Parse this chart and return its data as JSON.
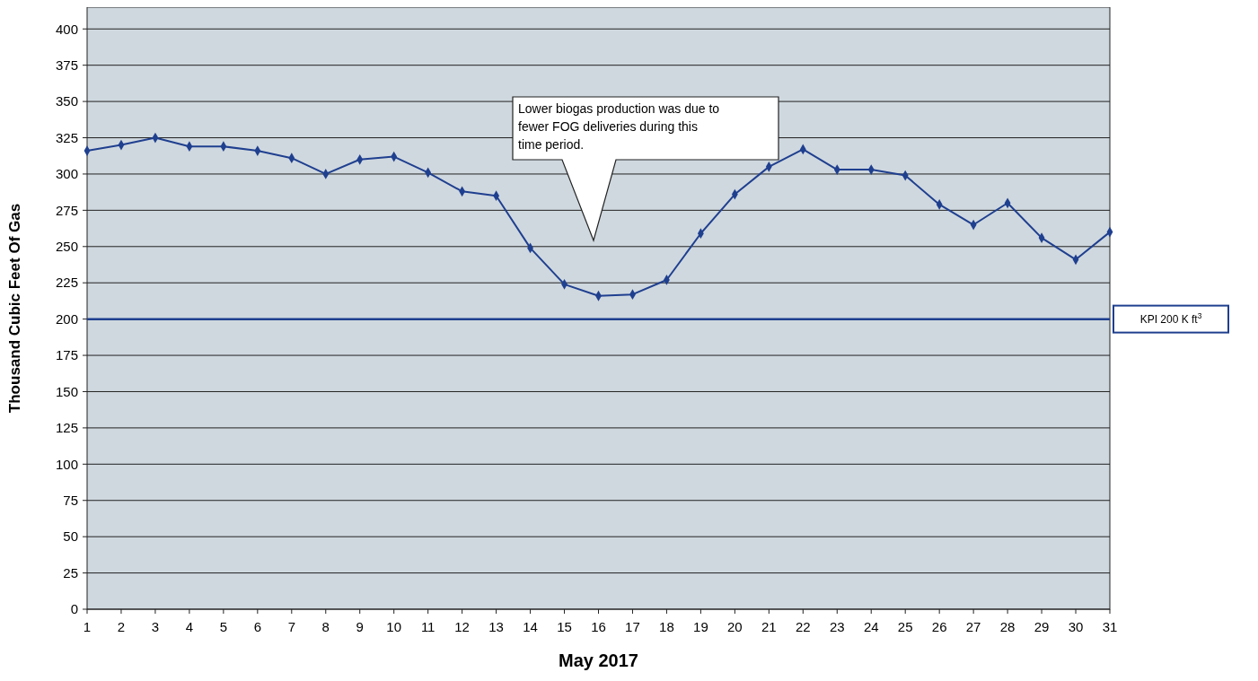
{
  "chart_data": {
    "type": "line",
    "xlabel": "May 2017",
    "ylabel": "Thousand Cubic Feet Of Gas",
    "x": [
      1,
      2,
      3,
      4,
      5,
      6,
      7,
      8,
      9,
      10,
      11,
      12,
      13,
      14,
      15,
      16,
      17,
      18,
      19,
      20,
      21,
      22,
      23,
      24,
      25,
      26,
      27,
      28,
      29,
      30,
      31
    ],
    "series": [
      {
        "color": "#1f3f8f",
        "values": [
          316,
          320,
          325,
          319,
          319,
          316,
          311,
          300,
          310,
          312,
          301,
          288,
          285,
          249,
          224,
          216,
          217,
          227,
          259,
          286,
          305,
          317,
          303,
          303,
          299,
          279,
          265,
          280,
          256,
          241,
          260
        ]
      }
    ],
    "xlim": [
      1,
      31
    ],
    "xticks": [
      1,
      2,
      3,
      4,
      5,
      6,
      7,
      8,
      9,
      10,
      11,
      12,
      13,
      14,
      15,
      16,
      17,
      18,
      19,
      20,
      21,
      22,
      23,
      24,
      25,
      26,
      27,
      28,
      29,
      30,
      31
    ],
    "ylim": [
      0,
      415
    ],
    "yticks": [
      0,
      25,
      50,
      75,
      100,
      125,
      150,
      175,
      200,
      225,
      250,
      275,
      300,
      325,
      350,
      375,
      400
    ],
    "grid": "y",
    "marker": "diamond",
    "line_style": "solid",
    "ref_lines": [
      {
        "axis": "y",
        "value": 200,
        "label": "KPI 200 K ft$^{3}$",
        "color": "#1f3f8f"
      }
    ],
    "annotations": [
      "Lower biogas production was due to fewer FOG deliveries during this time period."
    ]
  }
}
